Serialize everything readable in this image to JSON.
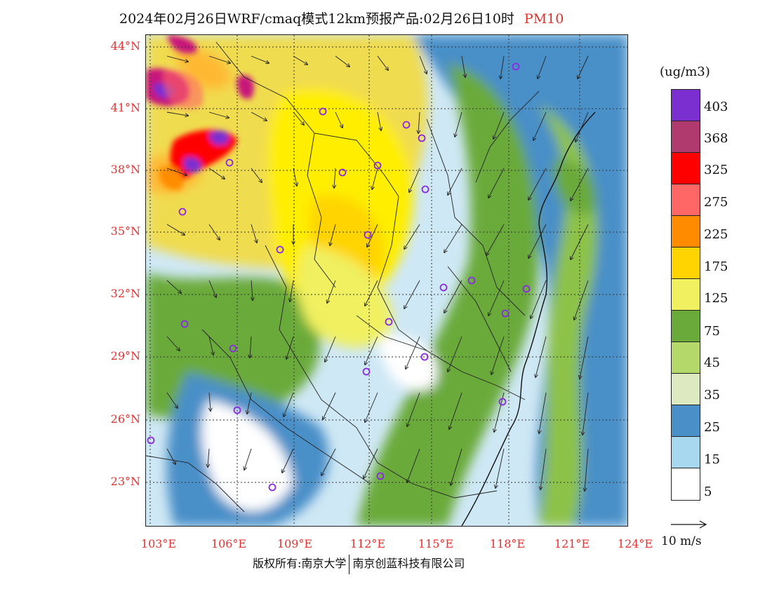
{
  "title": {
    "main": "2024年02月26日WRF/cmaq模式12km预报产品:02月26日10时",
    "pollutant": "PM10"
  },
  "lat_labels": [
    "44°N",
    "41°N",
    "38°N",
    "35°N",
    "32°N",
    "29°N",
    "26°N",
    "23°N"
  ],
  "lon_labels": [
    "103°E",
    "106°E",
    "109°E",
    "112°E",
    "115°E",
    "118°E",
    "121°E",
    "124°E"
  ],
  "colorbar": {
    "unit": "(ug/m3)",
    "labels": [
      "403",
      "368",
      "325",
      "275",
      "225",
      "175",
      "125",
      "75",
      "45",
      "35",
      "25",
      "15",
      "5"
    ],
    "colors": [
      "#7b2fd0",
      "#9b3fd0",
      "#b03a6e",
      "#c8147a",
      "#ff0000",
      "#ff3355",
      "#ff6666",
      "#f05a28",
      "#ff8c00",
      "#ffb833",
      "#ffd400",
      "#ffee00",
      "#f0dc50",
      "#f0f060",
      "#6aaa3a",
      "#8dc24a",
      "#b5d86a",
      "#cce49a",
      "#dde9c0",
      "#4a8fc8",
      "#6aaad8",
      "#a8d8f0",
      "#d6effa",
      "#ffffff"
    ]
  },
  "reference_vector": "10 m/s",
  "footer": {
    "left": "版权所有:南京大学",
    "right": "南京创蓝科技有限公司"
  }
}
